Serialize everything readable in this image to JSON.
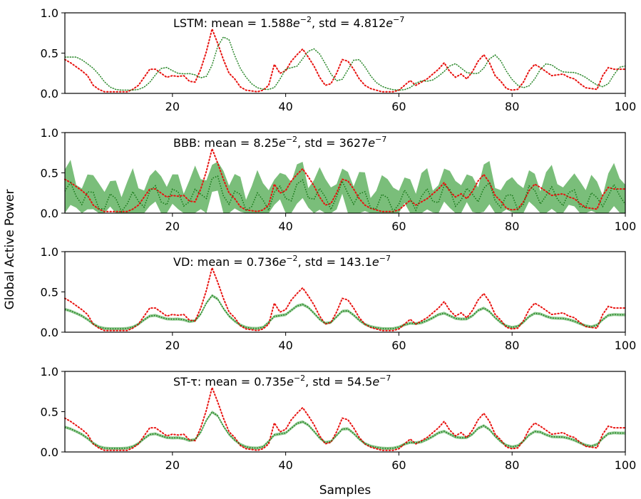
{
  "figure": {
    "ylabel": "Global Active Power",
    "xlabel": "Samples"
  },
  "colors": {
    "truth": "#e8120f",
    "prediction": "#1a7a1a",
    "band": "#63b363"
  },
  "chart_data": [
    {
      "type": "line",
      "annotation": {
        "prefix": "LSTM: mean",
        "mean_mantissa": "1.588",
        "std_mantissa": "4.812",
        "mean_exp": "−2",
        "std_exp": "−7"
      },
      "xlim": [
        1,
        100
      ],
      "ylim": [
        0,
        1
      ],
      "xticks": [
        20,
        40,
        60,
        80,
        100
      ],
      "yticks": [
        "0.0",
        "0.5",
        "1.0"
      ],
      "band_width": "tiny",
      "truth_style": "dotted",
      "prediction_style": "dotted"
    },
    {
      "type": "line",
      "annotation": {
        "prefix": "BBB: mean",
        "mean_mantissa": "8.25",
        "std_mantissa": "3627",
        "mean_exp": "−2",
        "std_exp": "−7"
      },
      "xlim": [
        1,
        100
      ],
      "ylim": [
        0,
        1
      ],
      "xticks": [
        20,
        40,
        60,
        80,
        100
      ],
      "yticks": [
        "0.0",
        "0.5",
        "1.0"
      ],
      "band_width": "wide",
      "truth_style": "dotted",
      "prediction_style": "dotted"
    },
    {
      "type": "line",
      "annotation": {
        "prefix": "VD: mean",
        "mean_mantissa": "0.736",
        "std_mantissa": "143.1",
        "mean_exp": "−2",
        "std_exp": "−7"
      },
      "xlim": [
        1,
        100
      ],
      "ylim": [
        0,
        1
      ],
      "xticks": [
        20,
        40,
        60,
        80,
        100
      ],
      "yticks": [
        "0.0",
        "0.5",
        "1.0"
      ],
      "band_width": "small",
      "truth_style": "dotted",
      "prediction_style": "dotted"
    },
    {
      "type": "line",
      "annotation": {
        "prefix": "ST-τ: mean",
        "mean_mantissa": "0.735",
        "std_mantissa": "54.5",
        "mean_exp": "−2",
        "std_exp": "−7"
      },
      "xlim": [
        1,
        100
      ],
      "ylim": [
        0,
        1
      ],
      "xticks": [
        20,
        40,
        60,
        80,
        100
      ],
      "yticks": [
        "0.0",
        "0.5",
        "1.0"
      ],
      "band_width": "small",
      "truth_style": "dotted",
      "prediction_style": "dotted"
    }
  ]
}
